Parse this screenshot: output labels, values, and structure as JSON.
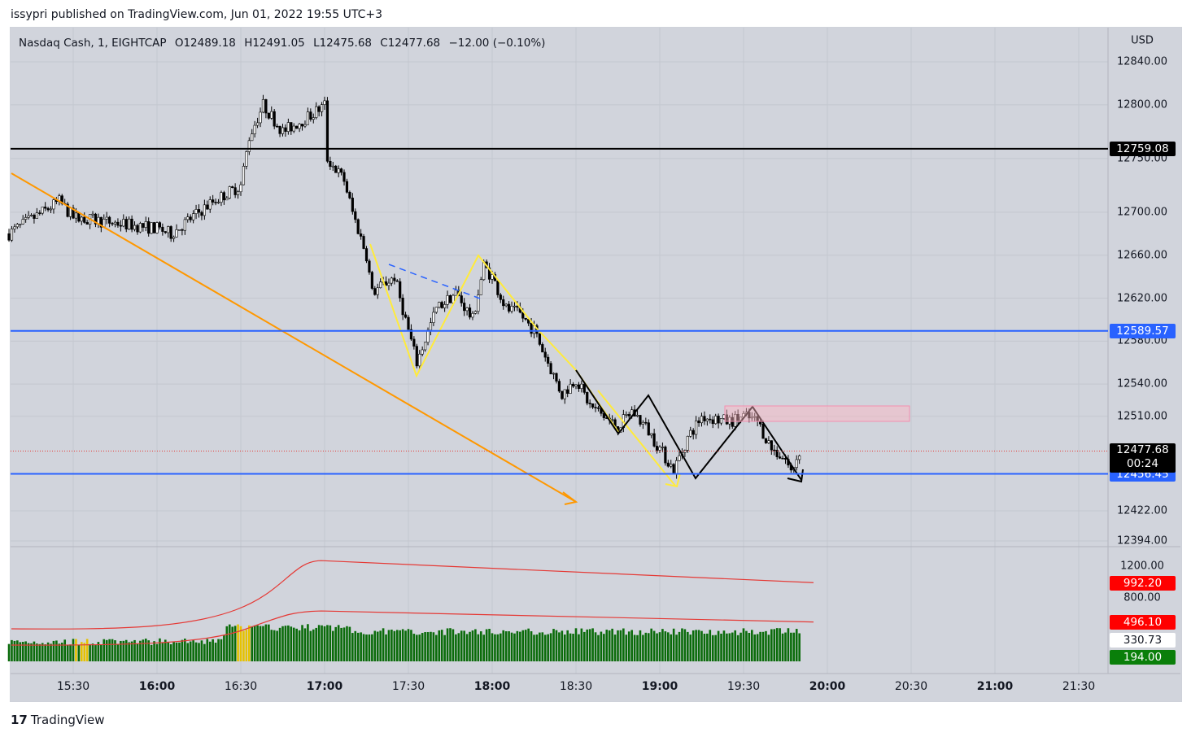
{
  "header": {
    "published": "issypri published on TradingView.com, Jun 01, 2022 19:55 UTC+3"
  },
  "legend": {
    "symbol": "Nasdaq Cash, 1, EIGHTCAP",
    "open": "O12489.18",
    "high": "H12491.05",
    "low": "L12475.68",
    "close": "C12477.68",
    "change": "−12.00 (−0.10%)"
  },
  "currency": "USD",
  "brand": "TradingView",
  "colors": {
    "background": "#d1d4dc",
    "black_level": "#000000",
    "blue_level": "#2962ff",
    "orange": "#ff9800",
    "yellow": "#ffeb3b",
    "volume": "#0a6b0a",
    "red": "#ff0000"
  },
  "chart_data": {
    "type": "candlestick",
    "title": "Nasdaq Cash, 1, EIGHTCAP",
    "ylabel": "USD",
    "ylim": [
      12394,
      12840
    ],
    "y_ticks": [
      "12840.00",
      "12800.00",
      "12750.00",
      "12700.00",
      "12660.00",
      "12620.00",
      "12580.00",
      "12540.00",
      "12510.00",
      "12422.00",
      "12394.00"
    ],
    "x_ticks": [
      "15:30",
      "16:00",
      "16:30",
      "17:00",
      "17:30",
      "18:00",
      "18:30",
      "19:00",
      "19:30",
      "20:00",
      "20:30",
      "21:00",
      "21:30"
    ],
    "price_path": [
      [
        "15:07",
        12680
      ],
      [
        "15:25",
        12710
      ],
      [
        "15:30",
        12695
      ],
      [
        "16:00",
        12685
      ],
      [
        "16:05",
        12680
      ],
      [
        "16:20",
        12710
      ],
      [
        "16:30",
        12725
      ],
      [
        "16:33",
        12770
      ],
      [
        "16:38",
        12800
      ],
      [
        "16:45",
        12775
      ],
      [
        "16:55",
        12790
      ],
      [
        "17:00",
        12800
      ],
      [
        "17:01",
        12750
      ],
      [
        "17:07",
        12730
      ],
      [
        "17:10",
        12700
      ],
      [
        "17:15",
        12660
      ],
      [
        "17:17",
        12625
      ],
      [
        "17:25",
        12640
      ],
      [
        "17:31",
        12580
      ],
      [
        "17:33",
        12560
      ],
      [
        "17:40",
        12610
      ],
      [
        "17:47",
        12625
      ],
      [
        "17:53",
        12600
      ],
      [
        "17:57",
        12650
      ],
      [
        "18:00",
        12640
      ],
      [
        "18:05",
        12610
      ],
      [
        "18:10",
        12605
      ],
      [
        "18:15",
        12590
      ],
      [
        "18:20",
        12560
      ],
      [
        "18:25",
        12530
      ],
      [
        "18:30",
        12545
      ],
      [
        "18:35",
        12520
      ],
      [
        "18:45",
        12500
      ],
      [
        "18:50",
        12515
      ],
      [
        "18:55",
        12500
      ],
      [
        "19:00",
        12480
      ],
      [
        "19:05",
        12460
      ],
      [
        "19:10",
        12490
      ],
      [
        "19:15",
        12510
      ],
      [
        "19:25",
        12505
      ],
      [
        "19:30",
        12510
      ],
      [
        "19:35",
        12505
      ],
      [
        "19:40",
        12480
      ],
      [
        "19:45",
        12470
      ],
      [
        "19:47",
        12458
      ],
      [
        "19:50",
        12477.68
      ]
    ],
    "levels": [
      {
        "label": "12759.08",
        "value": 12759.08,
        "color": "#000000"
      },
      {
        "label": "12589.57",
        "value": 12589.57,
        "color": "#2962ff"
      },
      {
        "label": "12456.45",
        "value": 12456.45,
        "color": "#2962ff"
      }
    ],
    "last_price": {
      "label": "12477.68",
      "countdown": "00:24"
    },
    "volume_pane": {
      "y_ticks": [
        "1200.00",
        "800.00"
      ],
      "tags": [
        {
          "label": "992.20",
          "bg": "#ff0000",
          "fg": "#ffffff"
        },
        {
          "label": "496.10",
          "bg": "#ff0000",
          "fg": "#ffffff"
        },
        {
          "label": "330.73",
          "bg": "#ffffff",
          "fg": "#131722"
        },
        {
          "label": "194.00",
          "bg": "#0a7f0a",
          "fg": "#ffffff"
        }
      ],
      "ylim": [
        0,
        1350
      ]
    }
  }
}
